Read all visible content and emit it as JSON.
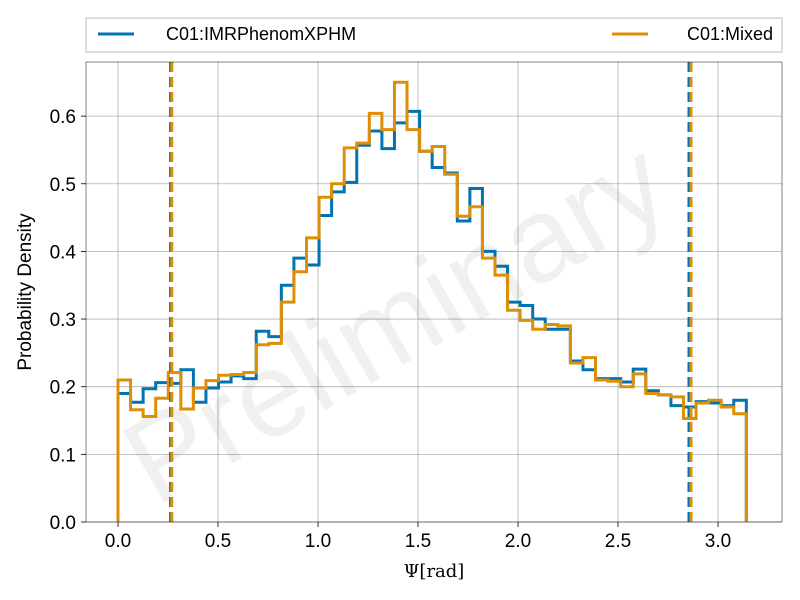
{
  "chart_data": {
    "type": "histogram",
    "xlabel": "Ψ[rad]",
    "ylabel": "Probability Density",
    "xlim": [
      -0.16,
      3.32
    ],
    "ylim": [
      0.0,
      0.68
    ],
    "xticks": [
      0.0,
      0.5,
      1.0,
      1.5,
      2.0,
      2.5,
      3.0
    ],
    "xtick_labels": [
      "0.0",
      "0.5",
      "1.0",
      "1.5",
      "2.0",
      "2.5",
      "3.0"
    ],
    "yticks": [
      0.0,
      0.1,
      0.2,
      0.3,
      0.4,
      0.5,
      0.6
    ],
    "ytick_labels": [
      "0.0",
      "0.1",
      "0.2",
      "0.3",
      "0.4",
      "0.5",
      "0.6"
    ],
    "grid": true,
    "legend": {
      "placement": "top, outside plot, two columns"
    },
    "watermark": "Preliminary",
    "bin_edges": [
      0.0,
      0.0628,
      0.1257,
      0.1885,
      0.2513,
      0.3142,
      0.377,
      0.4398,
      0.5027,
      0.5655,
      0.6283,
      0.6912,
      0.754,
      0.8168,
      0.8796,
      0.9425,
      1.0053,
      1.0681,
      1.131,
      1.1938,
      1.2566,
      1.3195,
      1.3823,
      1.4451,
      1.508,
      1.5708,
      1.6336,
      1.6965,
      1.7593,
      1.8221,
      1.885,
      1.9478,
      2.0106,
      2.0735,
      2.1363,
      2.1991,
      2.2619,
      2.3248,
      2.3876,
      2.4504,
      2.5133,
      2.5761,
      2.6389,
      2.7018,
      2.7646,
      2.8274,
      2.8903,
      2.9531,
      3.0159,
      3.0788,
      3.1416
    ],
    "series": [
      {
        "name": "C01:IMRPhenomXPHM",
        "color": "#0173b2",
        "values": [
          0.19,
          0.177,
          0.197,
          0.206,
          0.205,
          0.225,
          0.177,
          0.198,
          0.207,
          0.216,
          0.212,
          0.282,
          0.274,
          0.35,
          0.39,
          0.38,
          0.453,
          0.488,
          0.502,
          0.557,
          0.578,
          0.552,
          0.59,
          0.607,
          0.548,
          0.524,
          0.516,
          0.445,
          0.493,
          0.4,
          0.378,
          0.325,
          0.32,
          0.3,
          0.285,
          0.285,
          0.238,
          0.225,
          0.212,
          0.212,
          0.207,
          0.226,
          0.194,
          0.188,
          0.172,
          0.17,
          0.178,
          0.176,
          0.172,
          0.18
        ],
        "ci_lines": [
          0.263,
          2.855
        ]
      },
      {
        "name": "C01:Mixed",
        "color": "#de8f05",
        "values": [
          0.21,
          0.166,
          0.156,
          0.183,
          0.221,
          0.167,
          0.198,
          0.209,
          0.217,
          0.218,
          0.221,
          0.262,
          0.264,
          0.325,
          0.37,
          0.42,
          0.48,
          0.5,
          0.553,
          0.56,
          0.604,
          0.58,
          0.65,
          0.58,
          0.548,
          0.555,
          0.514,
          0.452,
          0.466,
          0.39,
          0.365,
          0.313,
          0.298,
          0.285,
          0.292,
          0.29,
          0.235,
          0.243,
          0.21,
          0.208,
          0.2,
          0.219,
          0.19,
          0.188,
          0.185,
          0.153,
          0.176,
          0.18,
          0.17,
          0.16
        ],
        "ci_lines": [
          0.269,
          2.865
        ]
      }
    ]
  }
}
